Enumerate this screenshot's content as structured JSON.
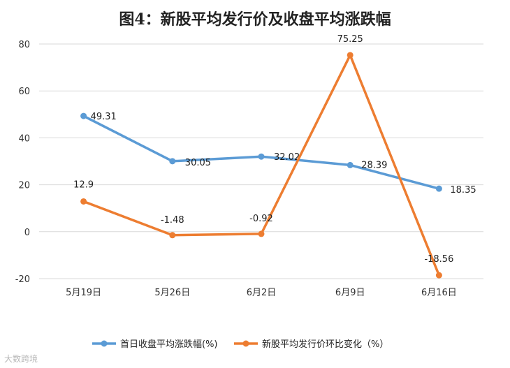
{
  "chart_data": {
    "type": "line",
    "title": "图4：新股平均发行价及收盘平均涨跌幅",
    "categories": [
      "5月19日",
      "5月26日",
      "6月2日",
      "6月9日",
      "6月16日"
    ],
    "y_ticks": [
      "80",
      "60",
      "40",
      "20",
      "0",
      "-20"
    ],
    "ylim": [
      -20,
      80
    ],
    "grid": true,
    "legend_position": "bottom",
    "series": [
      {
        "name": "首日收盘平均涨跌幅(%)",
        "color": "#5b9bd5",
        "values": [
          49.31,
          30.05,
          32.02,
          28.39,
          18.35
        ],
        "labels": [
          "49.31",
          "30.05",
          "32.02",
          "28.39",
          "18.35"
        ]
      },
      {
        "name": "新股平均发行价环比变化（%）",
        "color": "#ed7d31",
        "values": [
          12.9,
          -1.48,
          -0.92,
          75.25,
          -18.56
        ],
        "labels": [
          "12.9",
          "-1.48",
          "-0.92",
          "75.25",
          "-18.56"
        ]
      }
    ]
  },
  "watermark": "大数跨境"
}
